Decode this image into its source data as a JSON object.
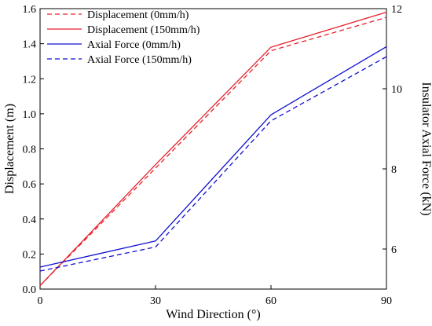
{
  "chart_data": {
    "type": "line",
    "x": [
      0,
      30,
      60,
      90
    ],
    "xlabel": "Wind Direction (°)",
    "ylabel_left": "Displacement (m)",
    "ylabel_right": "Insulator Axial Force (kN)",
    "xlim": [
      0,
      90
    ],
    "ylim_left": [
      0.0,
      1.6
    ],
    "ylim_right": [
      5,
      12
    ],
    "x_ticks": [
      "0",
      "30",
      "60",
      "90"
    ],
    "y_left_ticks": [
      "0.0",
      "0.2",
      "0.4",
      "0.6",
      "0.8",
      "1.0",
      "1.2",
      "1.4",
      "1.6"
    ],
    "y_right_ticks": [
      "6",
      "8",
      "10",
      "12"
    ],
    "grid": false,
    "legend_position": "top-left",
    "series": [
      {
        "name": "Displacement (0mm/h)",
        "axis": "left",
        "color": "#e8202a",
        "dash": true,
        "values": [
          0.02,
          0.69,
          1.36,
          1.55
        ]
      },
      {
        "name": "Displacement (150mm/h)",
        "axis": "left",
        "color": "#e8202a",
        "dash": false,
        "values": [
          0.02,
          0.71,
          1.38,
          1.58
        ]
      },
      {
        "name": "Axial Force (0mm/h)",
        "axis": "right",
        "color": "#1010d0",
        "dash": false,
        "values": [
          5.55,
          6.2,
          9.35,
          11.05
        ]
      },
      {
        "name": "Axial Force (150mm/h)",
        "axis": "right",
        "color": "#1010d0",
        "dash": true,
        "values": [
          5.45,
          6.05,
          9.2,
          10.8
        ]
      }
    ]
  }
}
